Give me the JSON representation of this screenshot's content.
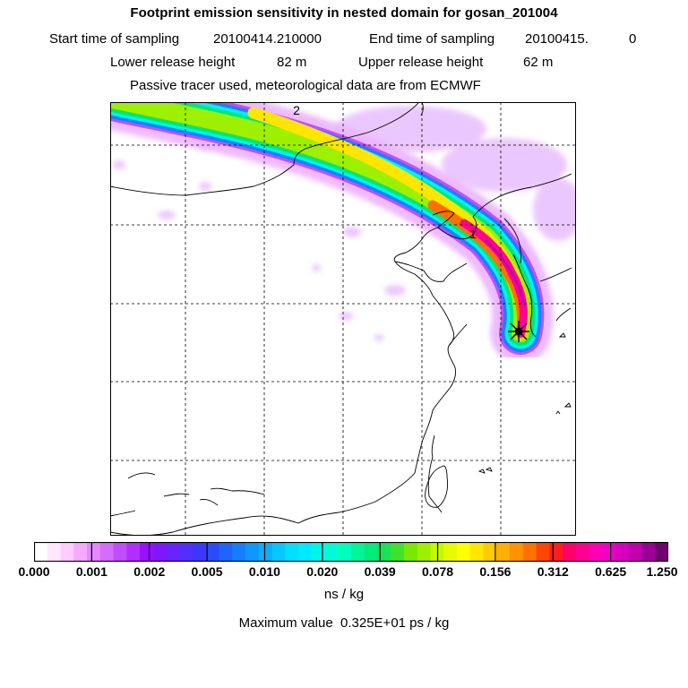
{
  "header": {
    "title": "Footprint emission sensitivity in nested domain for gosan_201004",
    "start_label": "Start time of sampling",
    "start_value": "20100414.210000",
    "end_label": "End time of sampling",
    "end_value": "20100415.",
    "end_suffix": "0",
    "lower_label": "Lower release height",
    "lower_value": "82 m",
    "upper_label": "Upper release height",
    "upper_value": "62 m",
    "tracer_line": "Passive tracer used, meteorological data are from ECMWF"
  },
  "map": {
    "markers": [
      "2",
      "1"
    ],
    "receptor_symbol": "star-receptor"
  },
  "colorbar": {
    "ticks": [
      "0.000",
      "0.001",
      "0.002",
      "0.005",
      "0.010",
      "0.020",
      "0.039",
      "0.078",
      "0.156",
      "0.312",
      "0.625",
      "1.250"
    ],
    "units": "ns / kg",
    "colors": [
      "#ffffff",
      "#ffe8ff",
      "#ffccff",
      "#f5aaff",
      "#e489ff",
      "#d66cff",
      "#c24dff",
      "#b12eff",
      "#9b10ff",
      "#8015ff",
      "#6a22ff",
      "#512fff",
      "#3c36ff",
      "#2a4cff",
      "#1f64ff",
      "#177dff",
      "#0f96ff",
      "#0caeff",
      "#08c6ff",
      "#04deff",
      "#00eaff",
      "#00f4ea",
      "#00fcd2",
      "#00ffbe",
      "#00f59a",
      "#00eb7a",
      "#19e354",
      "#3fe12e",
      "#7ae800",
      "#9df000",
      "#c3f800",
      "#e6fb00",
      "#ffff00",
      "#ffe600",
      "#ffcc00",
      "#ffb000",
      "#ff9200",
      "#ff7000",
      "#ff4600",
      "#ff1e1e",
      "#ff006a",
      "#ff0090",
      "#ff00b4",
      "#ee00c8",
      "#d800c0",
      "#c000b0",
      "#9a0098",
      "#720070"
    ]
  },
  "footer": {
    "maximum_label": "Maximum value",
    "maximum_value": "0.325E+01 ps / kg"
  }
}
